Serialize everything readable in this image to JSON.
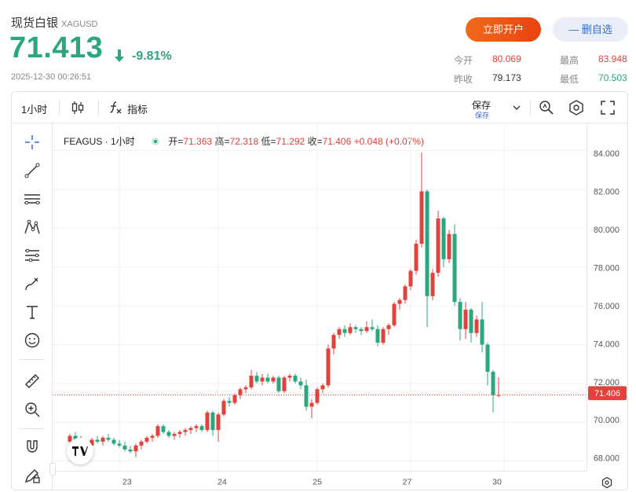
{
  "header": {
    "title": "现货白银",
    "symbol": "XAGUSD",
    "price": "71.413",
    "change": "-9.81%",
    "timestamp": "2025-12-30 00:26:51",
    "open_account_label": "立即开户",
    "watchlist_label": "— 删自选",
    "stats": {
      "open_label": "今开",
      "open_value": "80.069",
      "prev_close_label": "昨收",
      "prev_close_value": "79.173",
      "high_label": "最高",
      "high_value": "83.948",
      "low_label": "最低",
      "low_value": "70.503"
    }
  },
  "toolbar": {
    "interval": "1小时",
    "indicators_label": "指标",
    "save_label": "保存",
    "save_sub_label": "保存"
  },
  "legend": {
    "symbol_interval": "FEAGUS · 1小时",
    "open_label": "开=",
    "open_value": "71.363",
    "high_label": "高=",
    "high_value": "72.318",
    "low_label": "低=",
    "low_value": "71.292",
    "close_label": "收=",
    "close_value": "71.406",
    "change_value": "+0.048 (+0.07%)"
  },
  "colors": {
    "up": "#e0433b",
    "down": "#2aa77e",
    "accent": "#e9420f",
    "price_line": "#e0433b"
  },
  "icons": [
    "crosshair-icon",
    "trendline-icon",
    "parallel-lines-icon",
    "pattern-icon",
    "fib-icon",
    "brush-icon",
    "text-icon",
    "emoji-icon",
    "ruler-icon",
    "zoom-in-icon",
    "magnet-icon",
    "lock-pencil-icon",
    "candles-icon",
    "function-icon",
    "chevron-down-icon",
    "alert-icon",
    "settings-icon",
    "fullscreen-icon"
  ],
  "chart_data": {
    "type": "candlestick",
    "y_ticks": [
      "84.000",
      "82.000",
      "80.000",
      "78.000",
      "76.000",
      "74.000",
      "72.000",
      "70.000",
      "68.000"
    ],
    "ylim": [
      67.5,
      85.4
    ],
    "x_ticks": [
      {
        "label": "23",
        "index": 9
      },
      {
        "label": "24",
        "index": 27
      },
      {
        "label": "25",
        "index": 45
      },
      {
        "label": "27",
        "index": 62
      },
      {
        "label": "30",
        "index": 79
      }
    ],
    "last_price": "71.406",
    "last_value": 71.406,
    "candles": [
      [
        69.0,
        69.4,
        68.8,
        69.3
      ],
      [
        69.3,
        69.5,
        69.0,
        69.1
      ],
      [
        69.1,
        69.3,
        68.7,
        68.9
      ],
      [
        68.9,
        69.1,
        68.6,
        68.8
      ],
      [
        68.8,
        69.2,
        68.7,
        69.1
      ],
      [
        69.1,
        69.3,
        68.9,
        69.0
      ],
      [
        69.0,
        69.3,
        68.8,
        69.2
      ],
      [
        69.2,
        69.4,
        69.0,
        69.1
      ],
      [
        69.1,
        69.2,
        68.8,
        68.9
      ],
      [
        68.9,
        69.1,
        68.7,
        68.8
      ],
      [
        68.8,
        69.0,
        68.5,
        68.6
      ],
      [
        68.6,
        68.8,
        68.4,
        68.5
      ],
      [
        68.5,
        68.9,
        68.2,
        68.8
      ],
      [
        68.8,
        69.1,
        68.6,
        69.0
      ],
      [
        69.0,
        69.3,
        68.9,
        69.2
      ],
      [
        69.2,
        69.4,
        69.0,
        69.3
      ],
      [
        69.3,
        69.9,
        69.2,
        69.8
      ],
      [
        69.8,
        69.9,
        69.4,
        69.5
      ],
      [
        69.5,
        69.6,
        69.2,
        69.3
      ],
      [
        69.3,
        69.5,
        69.1,
        69.4
      ],
      [
        69.4,
        69.6,
        69.2,
        69.5
      ],
      [
        69.5,
        69.7,
        69.3,
        69.6
      ],
      [
        69.6,
        69.8,
        69.4,
        69.7
      ],
      [
        69.7,
        69.9,
        69.5,
        69.8
      ],
      [
        69.8,
        69.9,
        69.5,
        69.6
      ],
      [
        69.6,
        70.6,
        69.5,
        70.5
      ],
      [
        70.5,
        70.6,
        69.3,
        69.6
      ],
      [
        69.6,
        70.5,
        69.0,
        70.4
      ],
      [
        70.4,
        71.2,
        70.3,
        71.1
      ],
      [
        71.1,
        71.3,
        70.8,
        71.0
      ],
      [
        71.0,
        71.5,
        70.9,
        71.4
      ],
      [
        71.4,
        71.8,
        71.2,
        71.7
      ],
      [
        71.7,
        71.9,
        71.5,
        71.8
      ],
      [
        71.8,
        72.7,
        71.7,
        72.4
      ],
      [
        72.4,
        72.6,
        72.0,
        72.1
      ],
      [
        72.1,
        72.5,
        71.9,
        72.3
      ],
      [
        72.3,
        72.5,
        72.0,
        72.1
      ],
      [
        72.1,
        72.4,
        72.0,
        72.3
      ],
      [
        72.3,
        72.4,
        71.5,
        71.6
      ],
      [
        71.6,
        72.4,
        71.5,
        72.3
      ],
      [
        72.3,
        72.5,
        72.1,
        72.4
      ],
      [
        72.4,
        72.5,
        72.0,
        72.1
      ],
      [
        72.1,
        72.3,
        71.7,
        71.9
      ],
      [
        71.9,
        72.2,
        70.6,
        70.8
      ],
      [
        70.8,
        71.2,
        70.2,
        71.0
      ],
      [
        71.0,
        71.8,
        70.9,
        71.7
      ],
      [
        71.7,
        72.0,
        71.5,
        71.9
      ],
      [
        71.9,
        74.0,
        71.8,
        73.8
      ],
      [
        73.8,
        74.6,
        73.5,
        74.5
      ],
      [
        74.5,
        74.9,
        74.3,
        74.8
      ],
      [
        74.8,
        75.0,
        74.4,
        74.6
      ],
      [
        74.6,
        75.1,
        74.5,
        74.9
      ],
      [
        74.9,
        75.0,
        74.6,
        74.8
      ],
      [
        74.8,
        74.9,
        74.5,
        74.7
      ],
      [
        74.7,
        75.2,
        74.6,
        74.9
      ],
      [
        74.9,
        75.3,
        74.7,
        74.8
      ],
      [
        74.8,
        75.0,
        73.9,
        74.1
      ],
      [
        74.1,
        74.9,
        74.0,
        74.8
      ],
      [
        74.8,
        75.1,
        74.5,
        75.0
      ],
      [
        75.0,
        76.2,
        74.9,
        76.1
      ],
      [
        76.1,
        76.4,
        75.8,
        76.3
      ],
      [
        76.3,
        77.1,
        76.1,
        77.0
      ],
      [
        77.0,
        77.9,
        76.8,
        77.8
      ],
      [
        77.8,
        79.4,
        77.6,
        79.2
      ],
      [
        79.2,
        83.9,
        79.0,
        81.9
      ],
      [
        81.9,
        82.0,
        74.9,
        76.5
      ],
      [
        76.5,
        77.9,
        76.3,
        77.7
      ],
      [
        77.7,
        80.9,
        77.5,
        80.5
      ],
      [
        80.5,
        80.6,
        78.0,
        78.4
      ],
      [
        78.4,
        79.9,
        78.2,
        79.7
      ],
      [
        79.7,
        80.2,
        76.0,
        76.2
      ],
      [
        76.2,
        76.4,
        74.2,
        74.8
      ],
      [
        74.8,
        76.2,
        74.3,
        75.8
      ],
      [
        75.8,
        75.9,
        74.1,
        74.6
      ],
      [
        74.6,
        75.5,
        74.4,
        75.3
      ],
      [
        75.3,
        76.2,
        73.6,
        74.0
      ],
      [
        74.0,
        74.1,
        71.9,
        72.6
      ],
      [
        72.6,
        72.7,
        70.5,
        71.4
      ],
      [
        71.363,
        72.318,
        71.292,
        71.406
      ]
    ]
  }
}
